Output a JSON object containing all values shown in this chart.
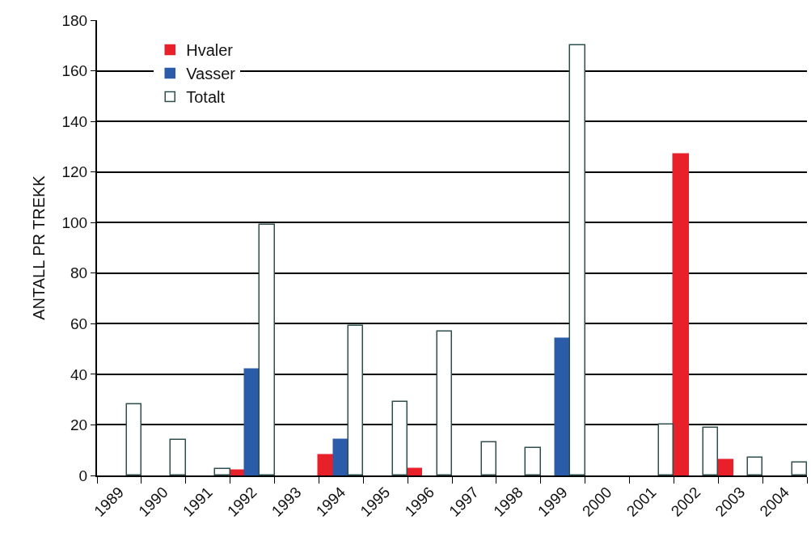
{
  "chart_data": {
    "type": "bar",
    "ylabel": "ANTALL PR TREKK",
    "categories": [
      "1989",
      "1990",
      "1991",
      "1992",
      "1993",
      "1994",
      "1995",
      "1996",
      "1997",
      "1998",
      "1999",
      "2000",
      "2001",
      "2002",
      "2003",
      "2004"
    ],
    "series": [
      {
        "name": "Hvaler",
        "color": "#e8202a",
        "values": [
          null,
          null,
          null,
          2,
          null,
          8,
          null,
          2.5,
          null,
          null,
          null,
          null,
          null,
          127,
          6,
          null
        ]
      },
      {
        "name": "Vasser",
        "color": "#2a5caa",
        "values": [
          null,
          null,
          null,
          42,
          null,
          14,
          null,
          null,
          null,
          null,
          54,
          null,
          null,
          null,
          null,
          null
        ]
      },
      {
        "name": "Totalt",
        "color": "#ffffff",
        "values": [
          28,
          14,
          2.5,
          99,
          null,
          59,
          29,
          57,
          13,
          11,
          170,
          null,
          20,
          19,
          7,
          5
        ]
      }
    ],
    "ylim": [
      0,
      180
    ],
    "yticks": [
      0,
      20,
      40,
      60,
      80,
      100,
      120,
      140,
      160,
      180
    ],
    "grid": "y",
    "legend": "top left"
  }
}
